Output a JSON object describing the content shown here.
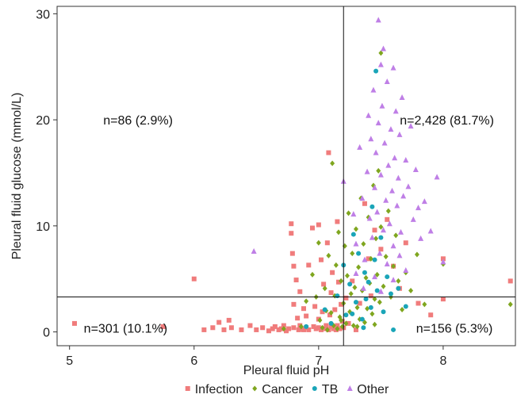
{
  "chart_data": {
    "type": "scatter",
    "xlabel": "Pleural fluid pH",
    "ylabel": "Pleural fluid glucose (mmol/L)",
    "xlim": [
      4.9,
      8.58
    ],
    "ylim": [
      -1.3,
      30.7
    ],
    "x_ticks": [
      5,
      6,
      7,
      8
    ],
    "y_ticks": [
      0,
      10,
      20,
      30
    ],
    "grid": false,
    "legend_position": "bottom",
    "threshold_lines": {
      "ph": 7.2,
      "glucose": 3.3
    },
    "annotations": [
      {
        "text": "n=86 (2.9%)",
        "x": 5.55,
        "y": 20
      },
      {
        "text": "n=2,428 (81.7%)",
        "x": 8.03,
        "y": 20
      },
      {
        "text": "n=301 (10.1%)",
        "x": 5.45,
        "y": 0.4
      },
      {
        "text": "n=156 (5.3%)",
        "x": 8.09,
        "y": 0.4
      }
    ],
    "series": [
      {
        "name": "Infection",
        "marker": "square",
        "color": "#f07c7c",
        "points": [
          [
            5.04,
            0.8
          ],
          [
            5.75,
            0.5
          ],
          [
            6.0,
            5.0
          ],
          [
            6.08,
            0.2
          ],
          [
            6.15,
            0.4
          ],
          [
            6.2,
            0.9
          ],
          [
            6.24,
            0.2
          ],
          [
            6.28,
            1.1
          ],
          [
            6.3,
            0.4
          ],
          [
            6.38,
            0.2
          ],
          [
            6.45,
            0.6
          ],
          [
            6.5,
            0.2
          ],
          [
            6.55,
            0.4
          ],
          [
            6.6,
            0.1
          ],
          [
            6.63,
            0.3
          ],
          [
            6.65,
            0.5
          ],
          [
            6.68,
            0.2
          ],
          [
            6.7,
            0.3
          ],
          [
            6.72,
            0.6
          ],
          [
            6.74,
            0.1
          ],
          [
            6.76,
            0.3
          ],
          [
            6.78,
            9.3
          ],
          [
            6.78,
            10.2
          ],
          [
            6.79,
            7.4
          ],
          [
            6.8,
            6.2
          ],
          [
            6.8,
            0.4
          ],
          [
            6.8,
            2.6
          ],
          [
            6.82,
            4.9
          ],
          [
            6.83,
            1.3
          ],
          [
            6.84,
            0.2
          ],
          [
            6.85,
            3.8
          ],
          [
            6.85,
            0.6
          ],
          [
            6.86,
            0.3
          ],
          [
            6.88,
            2.2
          ],
          [
            6.88,
            0.2
          ],
          [
            6.9,
            0.4
          ],
          [
            6.9,
            1.5
          ],
          [
            6.92,
            6.3
          ],
          [
            6.92,
            0.2
          ],
          [
            6.95,
            9.8
          ],
          [
            6.96,
            0.5
          ],
          [
            6.97,
            2.4
          ],
          [
            6.98,
            0.3
          ],
          [
            7.0,
            10.1
          ],
          [
            7.0,
            0.4
          ],
          [
            7.0,
            1.2
          ],
          [
            7.02,
            6.8
          ],
          [
            7.02,
            0.2
          ],
          [
            7.03,
            1.9
          ],
          [
            7.04,
            4.5
          ],
          [
            7.05,
            0.3
          ],
          [
            7.06,
            0.6
          ],
          [
            7.07,
            8.4
          ],
          [
            7.08,
            16.9
          ],
          [
            7.08,
            0.2
          ],
          [
            7.09,
            1.6
          ],
          [
            7.1,
            3.7
          ],
          [
            7.1,
            0.5
          ],
          [
            7.11,
            5.6
          ],
          [
            7.12,
            0.3
          ],
          [
            7.13,
            2.1
          ],
          [
            7.14,
            0.2
          ],
          [
            7.15,
            10.4
          ],
          [
            7.15,
            0.6
          ],
          [
            7.16,
            4.7
          ],
          [
            7.17,
            0.3
          ],
          [
            7.18,
            2.6
          ],
          [
            7.19,
            1.0
          ],
          [
            7.2,
            0.4
          ],
          [
            7.22,
            3.2
          ],
          [
            7.24,
            0.8
          ],
          [
            7.27,
            4.8
          ],
          [
            7.3,
            0.2
          ],
          [
            7.33,
            2.7
          ],
          [
            7.37,
            12.1
          ],
          [
            7.4,
            6.9
          ],
          [
            7.42,
            3.4
          ],
          [
            7.45,
            9.6
          ],
          [
            7.5,
            7.8
          ],
          [
            7.55,
            10.6
          ],
          [
            7.6,
            6.2
          ],
          [
            7.65,
            4.1
          ],
          [
            7.7,
            8.4
          ],
          [
            7.8,
            2.7
          ],
          [
            7.9,
            1.6
          ],
          [
            8.0,
            6.9
          ],
          [
            8.0,
            3.1
          ],
          [
            8.54,
            4.8
          ]
        ]
      },
      {
        "name": "Cancer",
        "marker": "diamond",
        "color": "#7fa61f",
        "points": [
          [
            6.72,
            0.3
          ],
          [
            6.86,
            0.5
          ],
          [
            6.9,
            2.9
          ],
          [
            6.95,
            5.4
          ],
          [
            7.0,
            8.4
          ],
          [
            7.01,
            1.1
          ],
          [
            7.03,
            0.4
          ],
          [
            7.05,
            4.1
          ],
          [
            7.07,
            0.2
          ],
          [
            7.08,
            7.2
          ],
          [
            7.1,
            1.8
          ],
          [
            7.11,
            15.9
          ],
          [
            7.12,
            0.6
          ],
          [
            7.13,
            3.4
          ],
          [
            7.14,
            6.3
          ],
          [
            7.15,
            0.3
          ],
          [
            7.16,
            9.4
          ],
          [
            7.17,
            1.4
          ],
          [
            7.18,
            4.8
          ],
          [
            7.19,
            0.5
          ],
          [
            7.2,
            2.7
          ],
          [
            7.21,
            8.1
          ],
          [
            7.22,
            0.8
          ],
          [
            7.23,
            5.3
          ],
          [
            7.24,
            11.2
          ],
          [
            7.25,
            1.9
          ],
          [
            7.26,
            3.6
          ],
          [
            7.27,
            7.4
          ],
          [
            7.28,
            0.6
          ],
          [
            7.29,
            4.2
          ],
          [
            7.3,
            9.7
          ],
          [
            7.31,
            2.3
          ],
          [
            7.32,
            6.1
          ],
          [
            7.33,
            1.2
          ],
          [
            7.34,
            12.6
          ],
          [
            7.35,
            3.9
          ],
          [
            7.36,
            8.3
          ],
          [
            7.37,
            0.9
          ],
          [
            7.38,
            5.1
          ],
          [
            7.39,
            2.2
          ],
          [
            7.4,
            10.8
          ],
          [
            7.41,
            4.6
          ],
          [
            7.42,
            6.9
          ],
          [
            7.43,
            1.7
          ],
          [
            7.44,
            13.8
          ],
          [
            7.45,
            3.1
          ],
          [
            7.46,
            8.8
          ],
          [
            7.47,
            5.4
          ],
          [
            7.48,
            15.2
          ],
          [
            7.49,
            2.8
          ],
          [
            7.5,
            9.9
          ],
          [
            7.52,
            4.3
          ],
          [
            7.54,
            7.1
          ],
          [
            7.56,
            11.4
          ],
          [
            7.58,
            3.3
          ],
          [
            7.6,
            6.2
          ],
          [
            7.62,
            9.1
          ],
          [
            7.64,
            4.8
          ],
          [
            7.67,
            2.1
          ],
          [
            7.7,
            5.6
          ],
          [
            7.74,
            3.9
          ],
          [
            7.79,
            7.3
          ],
          [
            7.85,
            2.6
          ],
          [
            7.5,
            26.3
          ],
          [
            8.0,
            6.4
          ],
          [
            8.54,
            2.6
          ],
          [
            6.98,
            3.3
          ],
          [
            7.06,
            2.0
          ],
          [
            7.18,
            1.1
          ],
          [
            7.31,
            0.5
          ],
          [
            7.45,
            0.7
          ]
        ]
      },
      {
        "name": "TB",
        "marker": "circle",
        "color": "#1aa5b8",
        "points": [
          [
            6.9,
            0.5
          ],
          [
            7.05,
            2.1
          ],
          [
            7.1,
            0.8
          ],
          [
            7.15,
            3.4
          ],
          [
            7.2,
            6.3
          ],
          [
            7.22,
            1.6
          ],
          [
            7.25,
            4.5
          ],
          [
            7.28,
            9.2
          ],
          [
            7.3,
            2.8
          ],
          [
            7.32,
            7.4
          ],
          [
            7.35,
            1.2
          ],
          [
            7.37,
            5.6
          ],
          [
            7.38,
            3.1
          ],
          [
            7.4,
            4.7
          ],
          [
            7.42,
            2.3
          ],
          [
            7.45,
            6.8
          ],
          [
            7.47,
            3.9
          ],
          [
            7.5,
            8.9
          ],
          [
            7.52,
            1.9
          ],
          [
            7.55,
            5.2
          ],
          [
            7.58,
            3.6
          ],
          [
            7.6,
            0.2
          ],
          [
            7.64,
            4.1
          ],
          [
            7.7,
            2.4
          ],
          [
            7.46,
            24.6
          ],
          [
            7.43,
            11.8
          ],
          [
            7.36,
            0.4
          ],
          [
            7.27,
            1.7
          ]
        ]
      },
      {
        "name": "Other",
        "marker": "triangle",
        "color": "#bf7fe6",
        "points": [
          [
            6.48,
            7.6
          ],
          [
            7.2,
            14.2
          ],
          [
            7.28,
            11.1
          ],
          [
            7.3,
            8.3
          ],
          [
            7.33,
            17.4
          ],
          [
            7.35,
            12.6
          ],
          [
            7.37,
            6.8
          ],
          [
            7.39,
            15.1
          ],
          [
            7.4,
            20.4
          ],
          [
            7.41,
            10.7
          ],
          [
            7.42,
            18.2
          ],
          [
            7.43,
            8.9
          ],
          [
            7.44,
            22.8
          ],
          [
            7.45,
            13.6
          ],
          [
            7.46,
            16.9
          ],
          [
            7.47,
            11.3
          ],
          [
            7.48,
            19.7
          ],
          [
            7.48,
            29.4
          ],
          [
            7.49,
            7.4
          ],
          [
            7.5,
            14.8
          ],
          [
            7.5,
            25.2
          ],
          [
            7.51,
            21.3
          ],
          [
            7.52,
            9.6
          ],
          [
            7.53,
            17.8
          ],
          [
            7.54,
            12.4
          ],
          [
            7.55,
            23.6
          ],
          [
            7.56,
            15.7
          ],
          [
            7.57,
            10.2
          ],
          [
            7.58,
            19.1
          ],
          [
            7.59,
            13.3
          ],
          [
            7.6,
            8.1
          ],
          [
            7.6,
            24.9
          ],
          [
            7.61,
            16.4
          ],
          [
            7.62,
            20.8
          ],
          [
            7.63,
            11.9
          ],
          [
            7.64,
            14.5
          ],
          [
            7.65,
            18.6
          ],
          [
            7.66,
            9.4
          ],
          [
            7.67,
            22.1
          ],
          [
            7.68,
            12.8
          ],
          [
            7.7,
            16.2
          ],
          [
            7.72,
            13.7
          ],
          [
            7.74,
            19.4
          ],
          [
            7.76,
            10.6
          ],
          [
            7.78,
            15.3
          ],
          [
            7.8,
            11.7
          ],
          [
            7.82,
            8.8
          ],
          [
            7.85,
            12.3
          ],
          [
            7.9,
            9.5
          ],
          [
            7.95,
            14.6
          ],
          [
            8.0,
            6.6
          ],
          [
            7.45,
            5.2
          ],
          [
            7.5,
            3.8
          ],
          [
            7.55,
            6.4
          ],
          [
            7.6,
            4.9
          ],
          [
            7.65,
            7.2
          ],
          [
            7.7,
            5.8
          ],
          [
            7.36,
            4.1
          ],
          [
            7.3,
            5.5
          ],
          [
            7.52,
            26.7
          ]
        ]
      }
    ]
  }
}
